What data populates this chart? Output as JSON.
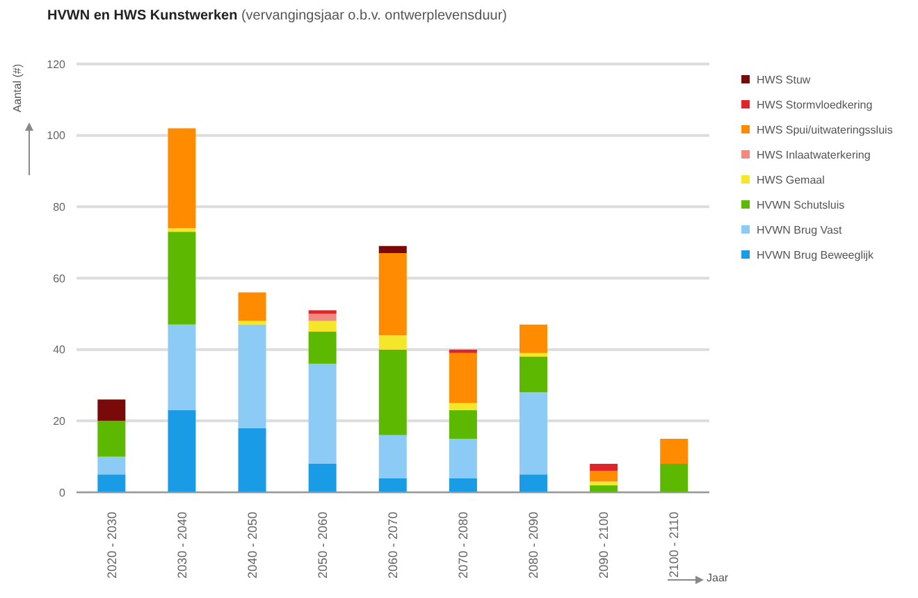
{
  "chart_data": {
    "type": "bar",
    "title": "HVWN en HWS Kunstwerken",
    "subtitle": "(vervangingsjaar o.b.v. ontwerplevensduur)",
    "xlabel": "Jaar",
    "ylabel": "Aantal (#)",
    "categories": [
      "2020 - 2030",
      "2030 - 2040",
      "2040 - 2050",
      "2050 - 2060",
      "2060 - 2070",
      "2070 - 2080",
      "2080 - 2090",
      "2090 - 2100",
      "2100 - 2110"
    ],
    "stacked": true,
    "ylim": [
      0,
      120
    ],
    "yticks": [
      0,
      20,
      40,
      60,
      80,
      100,
      120
    ],
    "grid": "y",
    "legend": "top right",
    "series": [
      {
        "name": "HVWN Brug Beweeglijk",
        "color": "#1a9be6",
        "values": [
          5,
          23,
          18,
          8,
          4,
          4,
          5,
          null,
          null
        ]
      },
      {
        "name": "HVWN Brug Vast",
        "color": "#8ccbf5",
        "values": [
          5,
          24,
          29,
          28,
          12,
          11,
          23,
          null,
          null
        ]
      },
      {
        "name": "HVWN Schutsluis",
        "color": "#5cb800",
        "values": [
          10,
          26,
          null,
          9,
          24,
          8,
          10,
          2,
          8
        ]
      },
      {
        "name": "HWS Gemaal",
        "color": "#f5e62a",
        "values": [
          null,
          1,
          1,
          3,
          4,
          2,
          1,
          1,
          null
        ]
      },
      {
        "name": "HWS Inlaatwaterkering",
        "color": "#f08a80",
        "values": [
          null,
          null,
          null,
          2,
          null,
          null,
          null,
          null,
          null
        ]
      },
      {
        "name": "HWS Spui/uitwateringssluis",
        "color": "#ff8c00",
        "values": [
          null,
          28,
          8,
          null,
          23,
          14,
          8,
          3,
          7
        ]
      },
      {
        "name": "HWS Stormvloedkering",
        "color": "#e0252a",
        "values": [
          null,
          null,
          null,
          1,
          null,
          1,
          null,
          2,
          null
        ]
      },
      {
        "name": "HWS Stuw",
        "color": "#7a0a0a",
        "values": [
          6,
          null,
          null,
          null,
          2,
          null,
          null,
          null,
          null
        ]
      }
    ]
  }
}
